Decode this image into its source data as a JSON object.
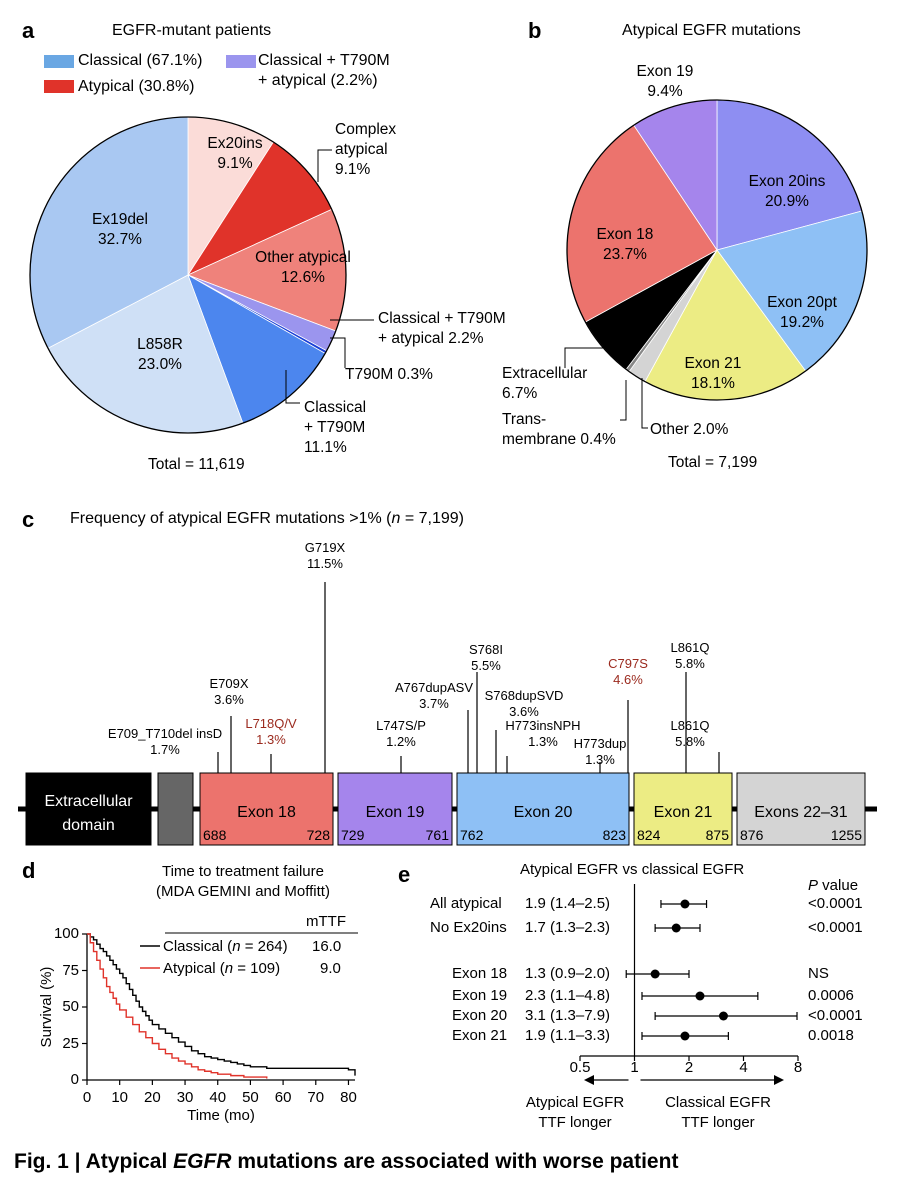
{
  "panel_a": {
    "label": "a",
    "title": "EGFR-mutant patients",
    "legend": [
      {
        "text": "Classical (67.1%)",
        "color": "#6aa7e3"
      },
      {
        "text": "Atypical (30.8%)",
        "color": "#e0332a"
      },
      {
        "text": "Classical + T790M",
        "text2": "+ atypical (2.2%)",
        "color": "#9b95ee"
      }
    ],
    "total": "Total = 11,619",
    "labels": {
      "ex20ins": [
        "Ex20ins",
        "9.1%"
      ],
      "complex": [
        "Complex",
        "atypical",
        "9.1%"
      ],
      "other": [
        "Other atypical",
        "12.6%"
      ],
      "ex19del": [
        "Ex19del",
        "32.7%"
      ],
      "l858r": [
        "L858R",
        "23.0%"
      ],
      "ct_atyp": [
        "Classical + T790M",
        "+ atypical 2.2%"
      ],
      "t790m": [
        "T790M 0.3%"
      ],
      "ct790m": [
        "Classical",
        "+ T790M",
        "11.1%"
      ]
    }
  },
  "panel_b": {
    "label": "b",
    "title": "Atypical EGFR mutations",
    "total": "Total = 7,199",
    "labels": {
      "exon19": [
        "Exon 19",
        "9.4%"
      ],
      "exon20ins": [
        "Exon 20ins",
        "20.9%"
      ],
      "exon18": [
        "Exon 18",
        "23.7%"
      ],
      "exon20pt": [
        "Exon 20pt",
        "19.2%"
      ],
      "exon21": [
        "Exon 21",
        "18.1%"
      ],
      "extracellular": [
        "Extracellular",
        "6.7%"
      ],
      "trans": [
        "Trans-",
        "membrane 0.4%"
      ],
      "other": [
        "Other 2.0%"
      ]
    }
  },
  "panel_c": {
    "label": "c",
    "title_pre": "Frequency of atypical EGFR mutations >1% (",
    "title_n": "n",
    "title_post": " = 7,199)",
    "domains": {
      "extracellular": [
        "Extracellular",
        "domain"
      ],
      "exon18": {
        "name": "Exon 18",
        "start": "688",
        "end": "728"
      },
      "exon19": {
        "name": "Exon 19",
        "start": "729",
        "end": "761"
      },
      "exon20": {
        "name": "Exon 20",
        "start": "762",
        "end": "823"
      },
      "exon21": {
        "name": "Exon 21",
        "start": "824",
        "end": "875"
      },
      "exons22": {
        "name": "Exons 22–31",
        "start": "876",
        "end": "1255"
      }
    },
    "mutations": [
      {
        "name": "E709_T710del insD",
        "pct": "1.7%",
        "red": false
      },
      {
        "name": "E709X",
        "pct": "3.6%",
        "red": false
      },
      {
        "name": "L718Q/V",
        "pct": "1.3%",
        "red": true
      },
      {
        "name": "G719X",
        "pct": "11.5%",
        "red": false
      },
      {
        "name": "L747S/P",
        "pct": "1.2%",
        "red": false
      },
      {
        "name": "A767dupASV",
        "pct": "3.7%",
        "red": false
      },
      {
        "name": "S768I",
        "pct": "5.5%",
        "red": false
      },
      {
        "name": "S768dupSVD",
        "pct": "3.6%",
        "red": false
      },
      {
        "name": "H773insNPH",
        "pct": "1.3%",
        "red": false
      },
      {
        "name": "H773dup",
        "pct": "1.3%",
        "red": false
      },
      {
        "name": "C797S",
        "pct": "4.6%",
        "red": true
      },
      {
        "name": "L861Q",
        "pct": "5.8%",
        "red": false
      },
      {
        "name": "L861Q",
        "pct": "5.8%",
        "red": false
      }
    ]
  },
  "panel_d": {
    "label": "d",
    "title": [
      "Time to treatment failure",
      "(MDA GEMINI and Moffitt)"
    ],
    "mttf_header": "mTTF",
    "legend": [
      {
        "pre": "Classical (",
        "n": "n",
        "post": " = 264)",
        "mttf": "16.0",
        "color": "#000000"
      },
      {
        "pre": "Atypical (",
        "n": "n",
        "post": " = 109)",
        "mttf": "9.0",
        "color": "#e0332a"
      }
    ],
    "ylabel": "Survival (%)",
    "xlabel": "Time (mo)",
    "yticks": [
      "0",
      "25",
      "50",
      "75",
      "100"
    ],
    "xticks": [
      "0",
      "10",
      "20",
      "30",
      "40",
      "50",
      "60",
      "70",
      "80"
    ]
  },
  "panel_e": {
    "label": "e",
    "title": "Atypical EGFR vs classical EGFR",
    "pvalue_header_p": "P",
    "pvalue_header_rest": " value",
    "xticks": [
      "0.5",
      "1",
      "2",
      "4",
      "8"
    ],
    "arrow_left": [
      "Atypical EGFR",
      "TTF longer"
    ],
    "arrow_right": [
      "Classical EGFR",
      "TTF longer"
    ]
  },
  "caption": {
    "prefix": "Fig. 1 | Atypical ",
    "italic": "EGFR",
    "suffix": " mutations are associated with worse patient"
  },
  "chart_data": [
    {
      "type": "pie",
      "title": "EGFR-mutant patients",
      "labels": [
        "Ex20ins",
        "Complex atypical",
        "Other atypical",
        "Classical + T790M + atypical",
        "T790M",
        "Classical + T790M",
        "L858R",
        "Ex19del"
      ],
      "values": [
        9.1,
        9.1,
        12.6,
        2.2,
        0.3,
        11.1,
        23.0,
        32.7
      ],
      "colors": [
        "#fbdcd8",
        "#e0332a",
        "#ef827b",
        "#9b95ee",
        "#1a3fd6",
        "#4c86ee",
        "#cfe0f6",
        "#a9c8f2"
      ]
    },
    {
      "type": "pie",
      "title": "Atypical EGFR mutations",
      "labels": [
        "Exon 20ins",
        "Exon 20pt",
        "Exon 21",
        "Other",
        "Transmembrane",
        "Extracellular",
        "Exon 18",
        "Exon 19"
      ],
      "values": [
        20.9,
        19.2,
        18.1,
        2.0,
        0.4,
        6.7,
        23.7,
        9.4
      ],
      "colors": [
        "#8e8ef2",
        "#8ec0f5",
        "#ecec84",
        "#d4d4d4",
        "#888888",
        "#000000",
        "#ec736d",
        "#a585ec"
      ]
    },
    {
      "type": "bar",
      "title": "Frequency of atypical EGFR mutations >1% (n = 7,199)",
      "categories": [
        "E709_T710del insD",
        "E709X",
        "L718Q/V",
        "G719X",
        "L747S/P",
        "A767dupASV",
        "S768I",
        "S768dupSVD",
        "H773insNPH",
        "H773dup",
        "C797S",
        "L861Q",
        "L861Q"
      ],
      "values": [
        1.7,
        3.6,
        1.3,
        11.5,
        1.2,
        3.7,
        5.5,
        3.6,
        1.3,
        1.3,
        4.6,
        5.8,
        5.8
      ]
    },
    {
      "type": "line",
      "title": "Time to treatment failure (MDA GEMINI and Moffitt)",
      "xlabel": "Time (mo)",
      "ylabel": "Survival (%)",
      "xlim": [
        0,
        82
      ],
      "ylim": [
        0,
        100
      ],
      "series": [
        {
          "name": "Classical (n = 264)",
          "color": "#000000",
          "points": [
            [
              0,
              100
            ],
            [
              1,
              98
            ],
            [
              2,
              96
            ],
            [
              3,
              93
            ],
            [
              4,
              90
            ],
            [
              5,
              88
            ],
            [
              6,
              85
            ],
            [
              7,
              82
            ],
            [
              8,
              79
            ],
            [
              9,
              76
            ],
            [
              10,
              73
            ],
            [
              11,
              70
            ],
            [
              12,
              66
            ],
            [
              13,
              62
            ],
            [
              14,
              58
            ],
            [
              15,
              54
            ],
            [
              16,
              50
            ],
            [
              17,
              47
            ],
            [
              18,
              44
            ],
            [
              19,
              41
            ],
            [
              20,
              38
            ],
            [
              22,
              35
            ],
            [
              24,
              32
            ],
            [
              26,
              29
            ],
            [
              28,
              26
            ],
            [
              30,
              23
            ],
            [
              32,
              20
            ],
            [
              34,
              18
            ],
            [
              36,
              16
            ],
            [
              38,
              15
            ],
            [
              40,
              14
            ],
            [
              42,
              13
            ],
            [
              44,
              12
            ],
            [
              46,
              11
            ],
            [
              48,
              10
            ],
            [
              50,
              9
            ],
            [
              55,
              8
            ],
            [
              60,
              8
            ],
            [
              65,
              8
            ],
            [
              70,
              8
            ],
            [
              75,
              8
            ],
            [
              80,
              7
            ],
            [
              82,
              3
            ]
          ]
        },
        {
          "name": "Atypical (n = 109)",
          "color": "#e0332a",
          "points": [
            [
              0,
              100
            ],
            [
              1,
              94
            ],
            [
              2,
              88
            ],
            [
              3,
              82
            ],
            [
              4,
              76
            ],
            [
              5,
              70
            ],
            [
              6,
              64
            ],
            [
              7,
              60
            ],
            [
              8,
              56
            ],
            [
              9,
              52
            ],
            [
              10,
              48
            ],
            [
              12,
              43
            ],
            [
              14,
              38
            ],
            [
              16,
              33
            ],
            [
              18,
              29
            ],
            [
              20,
              25
            ],
            [
              22,
              21
            ],
            [
              24,
              18
            ],
            [
              26,
              15
            ],
            [
              28,
              13
            ],
            [
              30,
              11
            ],
            [
              32,
              9
            ],
            [
              34,
              7
            ],
            [
              36,
              6
            ],
            [
              38,
              5
            ],
            [
              40,
              4
            ],
            [
              44,
              3
            ],
            [
              48,
              2
            ],
            [
              52,
              2
            ],
            [
              55,
              1
            ]
          ]
        }
      ]
    },
    {
      "type": "scatter",
      "title": "Atypical EGFR vs classical EGFR",
      "categories": [
        "All atypical",
        "No Ex20ins",
        "Exon 18",
        "Exon 19",
        "Exon 20",
        "Exon 21"
      ],
      "hr": [
        1.9,
        1.7,
        1.3,
        2.3,
        3.1,
        1.9
      ],
      "ci_low": [
        1.4,
        1.3,
        0.9,
        1.1,
        1.3,
        1.1
      ],
      "ci_high": [
        2.5,
        2.3,
        2.0,
        4.8,
        7.9,
        3.3
      ],
      "hr_text": [
        "1.9 (1.4–2.5)",
        "1.7 (1.3–2.3)",
        "1.3 (0.9–2.0)",
        "2.3 (1.1–4.8)",
        "3.1 (1.3–7.9)",
        "1.9 (1.1–3.3)"
      ],
      "p_values": [
        "<0.0001",
        "<0.0001",
        "NS",
        "0.0006",
        "<0.0001",
        "0.0018"
      ],
      "xscale": "log",
      "xlim": [
        0.5,
        8
      ]
    }
  ]
}
